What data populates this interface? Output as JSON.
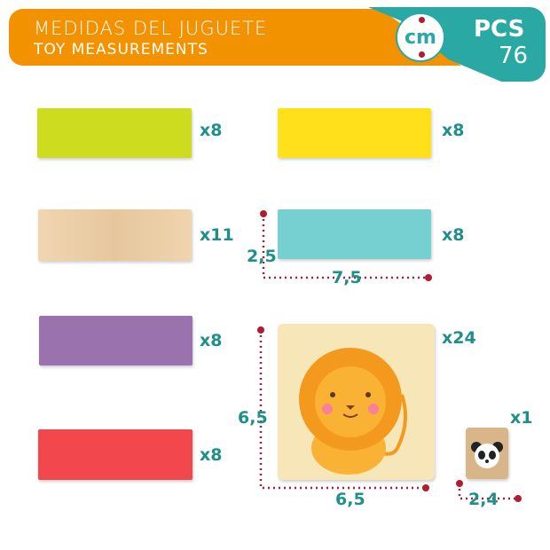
{
  "header": {
    "title_es": "MEDIDAS DEL JUGUETE",
    "title_en": "TOY MEASUREMENTS",
    "unit": "cm",
    "pcs_label": "PCS",
    "pcs_count": "76"
  },
  "colors": {
    "orange": "#f39200",
    "teal": "#2aa8a3",
    "dimension_line": "#b01c30"
  },
  "pieces": [
    {
      "name": "lime-block",
      "color": "#cddc1f",
      "qty": "x8"
    },
    {
      "name": "yellow-block",
      "color": "#ffe01a",
      "qty": "x8"
    },
    {
      "name": "wood-block",
      "color": "#ecd0aa",
      "qty": "x11"
    },
    {
      "name": "teal-block",
      "color": "#76cfd0",
      "qty": "x8"
    },
    {
      "name": "purple-block",
      "color": "#9a72ad",
      "qty": "x8"
    },
    {
      "name": "red-block",
      "color": "#f2474d",
      "qty": "x8"
    },
    {
      "name": "lion-card",
      "color": "#f7e6b8",
      "qty": "x24"
    },
    {
      "name": "panda-dice",
      "color": "#d9b68a",
      "qty": "x1"
    }
  ],
  "dimensions": {
    "block_height": "2,5",
    "block_width": "7,5",
    "card_height": "6,5",
    "card_width": "6,5",
    "dice_side": "2,4"
  }
}
